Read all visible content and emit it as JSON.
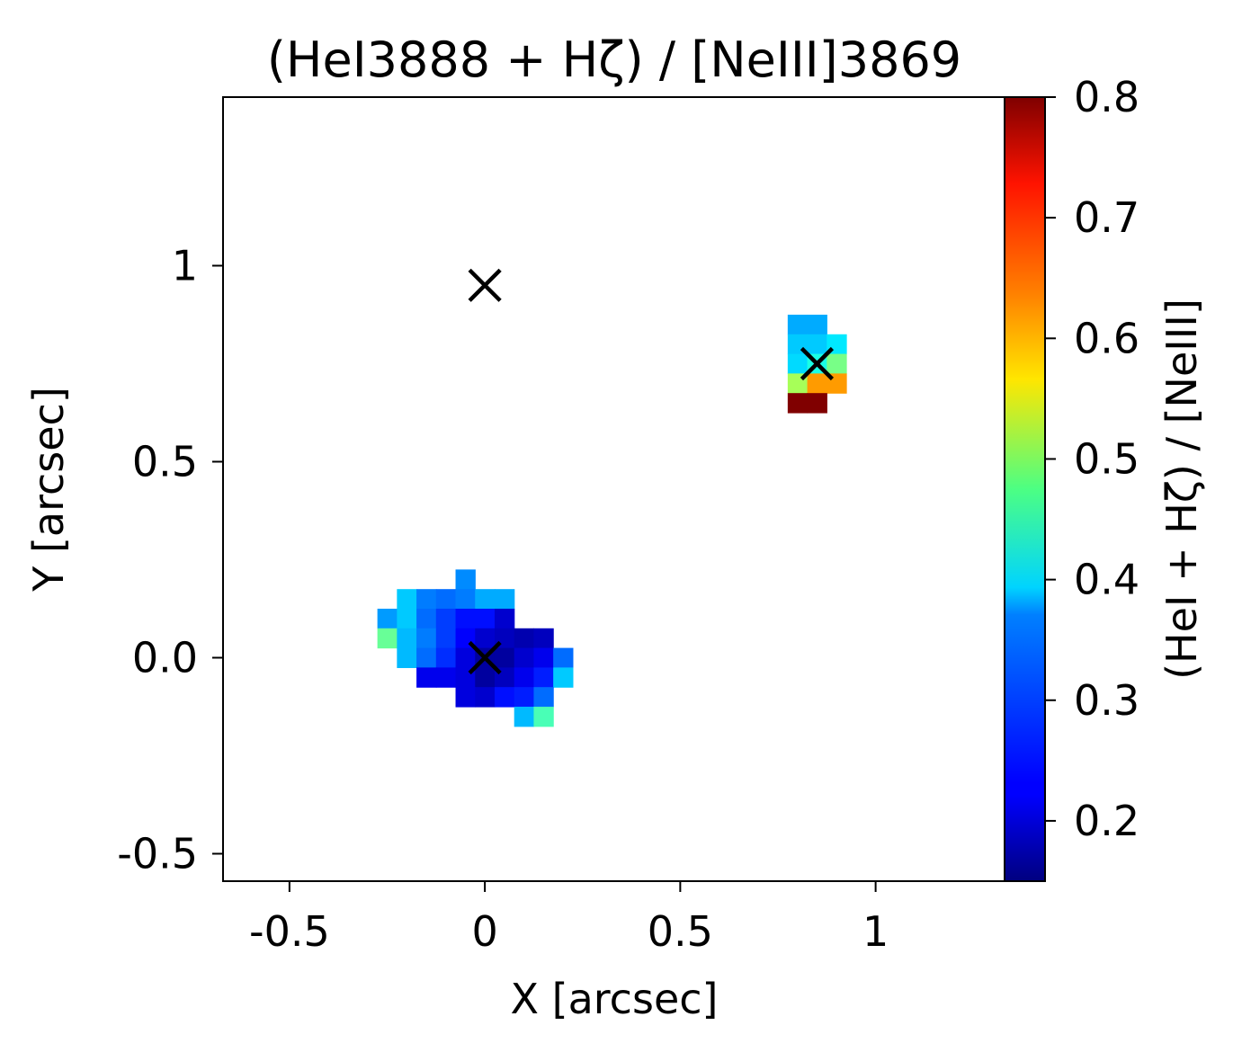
{
  "chart_data": {
    "type": "heatmap",
    "title": "(HeI3888 + Hζ) / [NeIII]3869",
    "xlabel": "X [arcsec]",
    "ylabel": "Y [arcsec]",
    "xlim": [
      -0.67,
      1.33
    ],
    "ylim": [
      -0.57,
      1.43
    ],
    "x_ticks": [
      -0.5,
      0,
      0.5,
      1
    ],
    "x_tick_labels": [
      "-0.5",
      "0",
      "0.5",
      "1"
    ],
    "y_ticks": [
      -0.5,
      0.0,
      0.5,
      1
    ],
    "y_tick_labels": [
      "-0.5",
      "0.0",
      "0.5",
      "1"
    ],
    "grid": false,
    "pixel_size": 0.05,
    "colorbar": {
      "label": "(HeI + Hζ) / [NeIII]",
      "colormap": "jet",
      "range": [
        0.15,
        0.8
      ],
      "ticks": [
        0.2,
        0.3,
        0.4,
        0.5,
        0.6,
        0.7,
        0.8
      ],
      "tick_labels": [
        "0.2",
        "0.3",
        "0.4",
        "0.5",
        "0.6",
        "0.7",
        "0.8"
      ]
    },
    "markers": [
      {
        "x": 0.0,
        "y": 0.95,
        "symbol": "×"
      },
      {
        "x": 0.0,
        "y": 0.0,
        "symbol": "×"
      },
      {
        "x": 0.85,
        "y": 0.75,
        "symbol": "×"
      }
    ],
    "pixels": [
      {
        "x": -0.05,
        "y": 0.2,
        "v": 0.32
      },
      {
        "x": -0.2,
        "y": 0.15,
        "v": 0.36
      },
      {
        "x": -0.15,
        "y": 0.15,
        "v": 0.31
      },
      {
        "x": -0.1,
        "y": 0.15,
        "v": 0.3
      },
      {
        "x": -0.05,
        "y": 0.15,
        "v": 0.31
      },
      {
        "x": 0.0,
        "y": 0.15,
        "v": 0.34
      },
      {
        "x": 0.05,
        "y": 0.15,
        "v": 0.34
      },
      {
        "x": -0.25,
        "y": 0.1,
        "v": 0.33
      },
      {
        "x": -0.2,
        "y": 0.1,
        "v": 0.36
      },
      {
        "x": -0.15,
        "y": 0.1,
        "v": 0.3
      },
      {
        "x": -0.1,
        "y": 0.1,
        "v": 0.27
      },
      {
        "x": -0.05,
        "y": 0.1,
        "v": 0.24
      },
      {
        "x": 0.0,
        "y": 0.1,
        "v": 0.24
      },
      {
        "x": 0.05,
        "y": 0.1,
        "v": 0.2
      },
      {
        "x": -0.25,
        "y": 0.05,
        "v": 0.46
      },
      {
        "x": -0.2,
        "y": 0.05,
        "v": 0.35
      },
      {
        "x": -0.15,
        "y": 0.05,
        "v": 0.31
      },
      {
        "x": -0.1,
        "y": 0.05,
        "v": 0.27
      },
      {
        "x": -0.05,
        "y": 0.05,
        "v": 0.23
      },
      {
        "x": 0.0,
        "y": 0.05,
        "v": 0.2
      },
      {
        "x": 0.05,
        "y": 0.05,
        "v": 0.19
      },
      {
        "x": 0.1,
        "y": 0.05,
        "v": 0.18
      },
      {
        "x": 0.15,
        "y": 0.05,
        "v": 0.19
      },
      {
        "x": -0.2,
        "y": 0.0,
        "v": 0.35
      },
      {
        "x": -0.15,
        "y": 0.0,
        "v": 0.3
      },
      {
        "x": -0.1,
        "y": 0.0,
        "v": 0.26
      },
      {
        "x": -0.05,
        "y": 0.0,
        "v": 0.21
      },
      {
        "x": 0.0,
        "y": 0.0,
        "v": 0.17
      },
      {
        "x": 0.05,
        "y": 0.0,
        "v": 0.17
      },
      {
        "x": 0.1,
        "y": 0.0,
        "v": 0.2
      },
      {
        "x": 0.15,
        "y": 0.0,
        "v": 0.22
      },
      {
        "x": 0.2,
        "y": 0.0,
        "v": 0.3
      },
      {
        "x": -0.15,
        "y": -0.05,
        "v": 0.22
      },
      {
        "x": -0.1,
        "y": -0.05,
        "v": 0.22
      },
      {
        "x": -0.05,
        "y": -0.05,
        "v": 0.21
      },
      {
        "x": 0.0,
        "y": -0.05,
        "v": 0.17
      },
      {
        "x": 0.05,
        "y": -0.05,
        "v": 0.19
      },
      {
        "x": 0.1,
        "y": -0.05,
        "v": 0.22
      },
      {
        "x": 0.15,
        "y": -0.05,
        "v": 0.25
      },
      {
        "x": 0.2,
        "y": -0.05,
        "v": 0.36
      },
      {
        "x": -0.05,
        "y": -0.1,
        "v": 0.21
      },
      {
        "x": 0.0,
        "y": -0.1,
        "v": 0.2
      },
      {
        "x": 0.05,
        "y": -0.1,
        "v": 0.24
      },
      {
        "x": 0.1,
        "y": -0.1,
        "v": 0.25
      },
      {
        "x": 0.15,
        "y": -0.1,
        "v": 0.3
      },
      {
        "x": 0.1,
        "y": -0.15,
        "v": 0.35
      },
      {
        "x": 0.15,
        "y": -0.15,
        "v": 0.44
      },
      {
        "x": 0.8,
        "y": 0.85,
        "v": 0.34
      },
      {
        "x": 0.85,
        "y": 0.85,
        "v": 0.34
      },
      {
        "x": 0.8,
        "y": 0.8,
        "v": 0.36
      },
      {
        "x": 0.85,
        "y": 0.8,
        "v": 0.36
      },
      {
        "x": 0.9,
        "y": 0.8,
        "v": 0.38
      },
      {
        "x": 0.8,
        "y": 0.75,
        "v": 0.37
      },
      {
        "x": 0.85,
        "y": 0.75,
        "v": 0.41
      },
      {
        "x": 0.9,
        "y": 0.75,
        "v": 0.47
      },
      {
        "x": 0.8,
        "y": 0.7,
        "v": 0.5
      },
      {
        "x": 0.85,
        "y": 0.7,
        "v": 0.62
      },
      {
        "x": 0.9,
        "y": 0.7,
        "v": 0.62
      },
      {
        "x": 0.8,
        "y": 0.65,
        "v": 0.8
      },
      {
        "x": 0.85,
        "y": 0.65,
        "v": 0.8
      }
    ]
  }
}
